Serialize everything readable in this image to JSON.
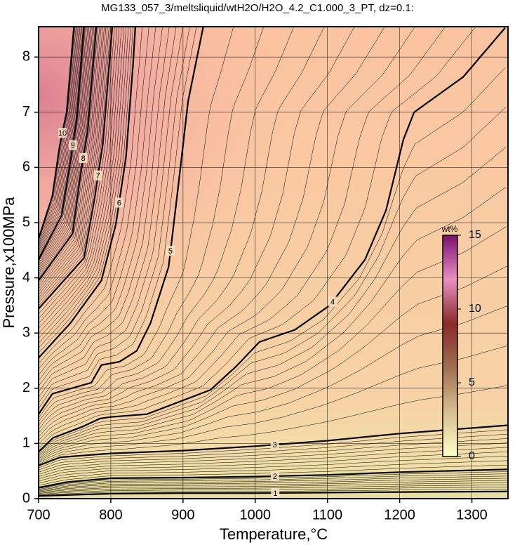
{
  "chart_data": {
    "type": "contour",
    "title": "MG133_057_3/meltsliquid/wtH2O/H2O_4.2_C1.000_3_PT, dz=0.1:",
    "x_label": "Temperature,°C",
    "y_label": "Pressure,x100MPa",
    "xlim": [
      700,
      1350
    ],
    "ylim": [
      0,
      8.55
    ],
    "xticks": [
      700,
      800,
      900,
      1000,
      1100,
      1200,
      1300
    ],
    "yticks": [
      0,
      1,
      2,
      3,
      4,
      5,
      6,
      7,
      8
    ],
    "grid": true,
    "contours": [
      {
        "level": 1,
        "x": [
          700,
          800,
          900,
          1000,
          1100,
          1200,
          1350
        ],
        "y": [
          0.05,
          0.09,
          0.1,
          0.1,
          0.11,
          0.12,
          0.13
        ]
      },
      {
        "level": 2,
        "x": [
          700,
          740,
          800,
          900,
          1000,
          1100,
          1200,
          1350
        ],
        "y": [
          0.2,
          0.3,
          0.37,
          0.38,
          0.4,
          0.43,
          0.48,
          0.53
        ]
      },
      {
        "level": 3,
        "x": [
          700,
          730,
          780,
          800,
          900,
          1000,
          1100,
          1200,
          1350
        ],
        "y": [
          0.6,
          0.75,
          0.8,
          0.82,
          0.87,
          0.95,
          1.05,
          1.18,
          1.33
        ]
      },
      {
        "level": 4,
        "x": [
          700,
          720,
          760,
          785,
          800,
          850,
          938,
          973,
          1006,
          1055,
          1103,
          1152,
          1181,
          1205,
          1220,
          1288,
          1346
        ],
        "y": [
          0.85,
          1.1,
          1.3,
          1.45,
          1.48,
          1.53,
          1.97,
          2.39,
          2.84,
          3.06,
          3.5,
          4.33,
          5.22,
          6.5,
          7.0,
          7.64,
          8.53
        ]
      },
      {
        "level": 5,
        "x": [
          700,
          719,
          773,
          787,
          812,
          836,
          855,
          880,
          894,
          907,
          928
        ],
        "y": [
          1.53,
          1.9,
          2.1,
          2.42,
          2.48,
          2.68,
          3.18,
          4.2,
          5.73,
          7.2,
          8.55
        ]
      },
      {
        "level": 6,
        "x": [
          700,
          744,
          787,
          807,
          821,
          831,
          834
        ],
        "y": [
          2.55,
          3.18,
          3.95,
          4.97,
          6.18,
          7.9,
          8.55
        ]
      },
      {
        "level": 7,
        "x": [
          700,
          763,
          778,
          789,
          802
        ],
        "y": [
          3.44,
          4.36,
          5.48,
          6.43,
          8.55
        ]
      },
      {
        "level": 8,
        "x": [
          700,
          747,
          758,
          768,
          780
        ],
        "y": [
          3.95,
          4.8,
          5.86,
          6.66,
          8.55
        ]
      },
      {
        "level": 9,
        "x": [
          700,
          732,
          744,
          753,
          763
        ],
        "y": [
          4.33,
          5.13,
          6.11,
          6.88,
          8.55
        ]
      },
      {
        "level": 10,
        "x": [
          700,
          719,
          729,
          739,
          749
        ],
        "y": [
          4.71,
          5.48,
          6.37,
          7.01,
          8.55
        ]
      }
    ],
    "colorbar": {
      "label": "wt%",
      "lim": [
        0,
        15
      ],
      "ticks": [
        0,
        5,
        10,
        15
      ],
      "colors": [
        "#ffffc8",
        "#d8c090",
        "#a07050",
        "#8a2a2a",
        "#e890c0",
        "#7a1070"
      ]
    }
  }
}
